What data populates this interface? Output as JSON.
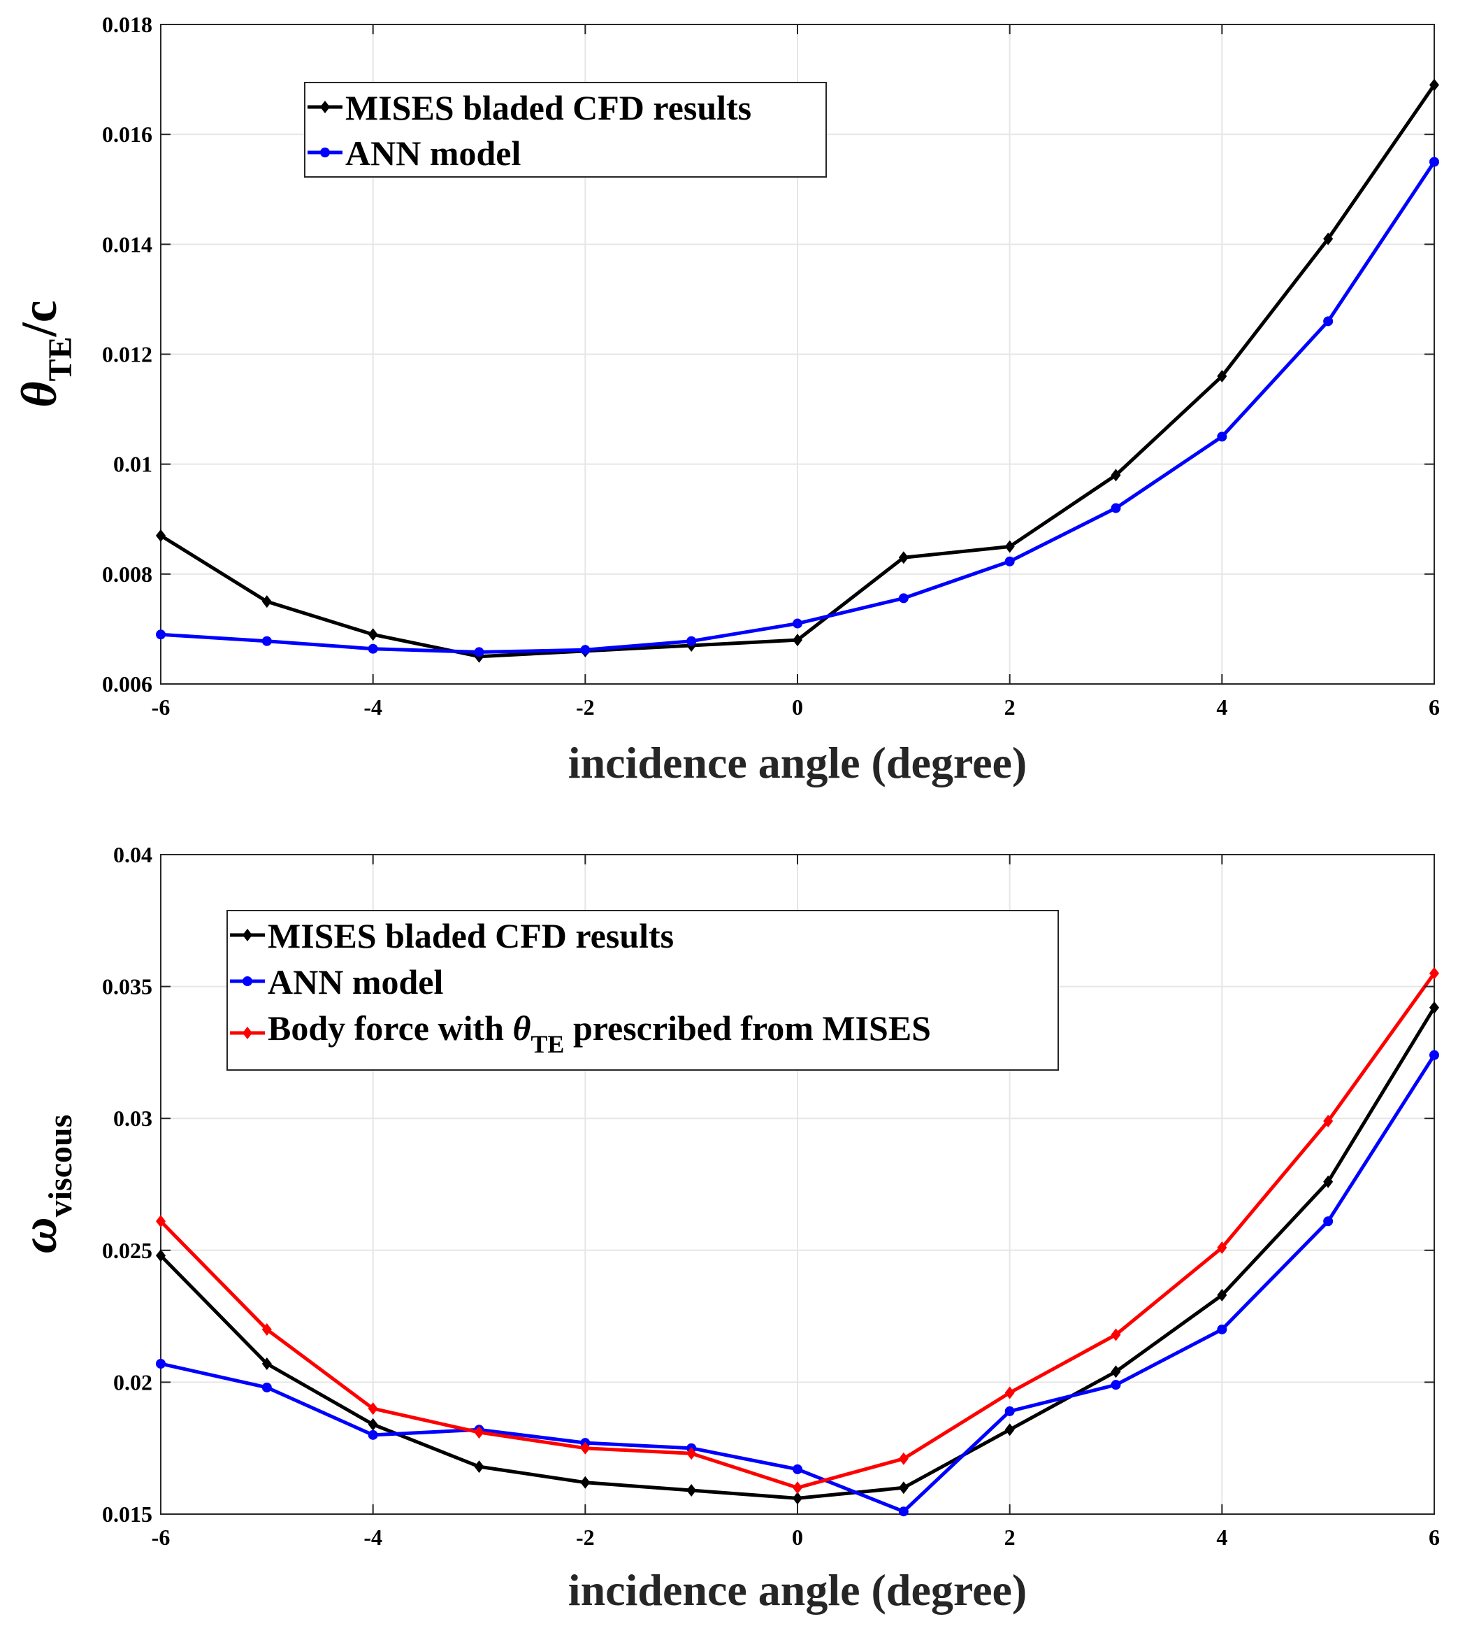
{
  "chart_data": [
    {
      "type": "line",
      "title": "",
      "xlabel": "incidence angle (degree)",
      "ylabel": {
        "symbol": "θ",
        "subscript": "TE",
        "suffix": "/c"
      },
      "xlim": [
        -6,
        6
      ],
      "ylim": [
        0.006,
        0.018
      ],
      "xticks": [
        -6,
        -4,
        -2,
        0,
        2,
        4,
        6
      ],
      "yticks": [
        0.006,
        0.008,
        0.01,
        0.012,
        0.014,
        0.016,
        0.018
      ],
      "xtick_labels": [
        "-6",
        "-4",
        "-2",
        "0",
        "2",
        "4",
        "6"
      ],
      "ytick_labels": [
        "0.006",
        "0.008",
        "0.01",
        "0.012",
        "0.014",
        "0.016",
        "0.018"
      ],
      "grid": true,
      "legend_position": "top-left",
      "x": [
        -6,
        -5,
        -4,
        -3,
        -2,
        -1,
        0,
        1,
        2,
        3,
        4,
        5,
        6
      ],
      "series": [
        {
          "name": "MISES bladed CFD results",
          "color": "#000000",
          "marker": "diamond",
          "values": [
            0.0087,
            0.0075,
            0.0069,
            0.0065,
            0.0066,
            0.0067,
            0.0068,
            0.0083,
            0.0085,
            0.0098,
            0.0116,
            0.0141,
            0.0169
          ]
        },
        {
          "name": "ANN model",
          "color": "#0000ff",
          "marker": "circle",
          "values": [
            0.0069,
            0.00678,
            0.00664,
            0.00658,
            0.00662,
            0.00678,
            0.0071,
            0.00756,
            0.00823,
            0.0092,
            0.0105,
            0.0126,
            0.0155
          ]
        }
      ]
    },
    {
      "type": "line",
      "title": "",
      "xlabel": "incidence angle (degree)",
      "ylabel": {
        "symbol": "ω",
        "subscript": "viscous",
        "suffix": ""
      },
      "xlim": [
        -6,
        6
      ],
      "ylim": [
        0.015,
        0.04
      ],
      "xticks": [
        -6,
        -4,
        -2,
        0,
        2,
        4,
        6
      ],
      "yticks": [
        0.015,
        0.02,
        0.025,
        0.03,
        0.035,
        0.04
      ],
      "xtick_labels": [
        "-6",
        "-4",
        "-2",
        "0",
        "2",
        "4",
        "6"
      ],
      "ytick_labels": [
        "0.015",
        "0.02",
        "0.025",
        "0.03",
        "0.035",
        "0.04"
      ],
      "grid": true,
      "legend_position": "top-left",
      "x": [
        -6,
        -5,
        -4,
        -3,
        -2,
        -1,
        0,
        1,
        2,
        3,
        4,
        5,
        6
      ],
      "series": [
        {
          "name": "MISES bladed CFD results",
          "color": "#000000",
          "marker": "diamond",
          "values": [
            0.0248,
            0.0207,
            0.0184,
            0.0168,
            0.0162,
            0.0159,
            0.0156,
            0.016,
            0.0182,
            0.0204,
            0.0233,
            0.0276,
            0.0342
          ]
        },
        {
          "name": "ANN model",
          "color": "#0000ff",
          "marker": "circle",
          "values": [
            0.0207,
            0.0198,
            0.018,
            0.0182,
            0.0177,
            0.0175,
            0.0167,
            0.0151,
            0.0189,
            0.0199,
            0.022,
            0.0261,
            0.0324
          ]
        },
        {
          "name": "Body force with θTE prescribed from MISES",
          "color": "#ff0000",
          "marker": "diamond",
          "legend_parts": {
            "before": "Body force with ",
            "symbol": "θ",
            "subscript": "TE",
            "after": " prescribed from MISES"
          },
          "values": [
            0.0261,
            0.022,
            0.019,
            0.0181,
            0.0175,
            0.0173,
            0.016,
            0.0171,
            0.0196,
            0.0218,
            0.0251,
            0.0299,
            0.0355
          ]
        }
      ]
    }
  ]
}
